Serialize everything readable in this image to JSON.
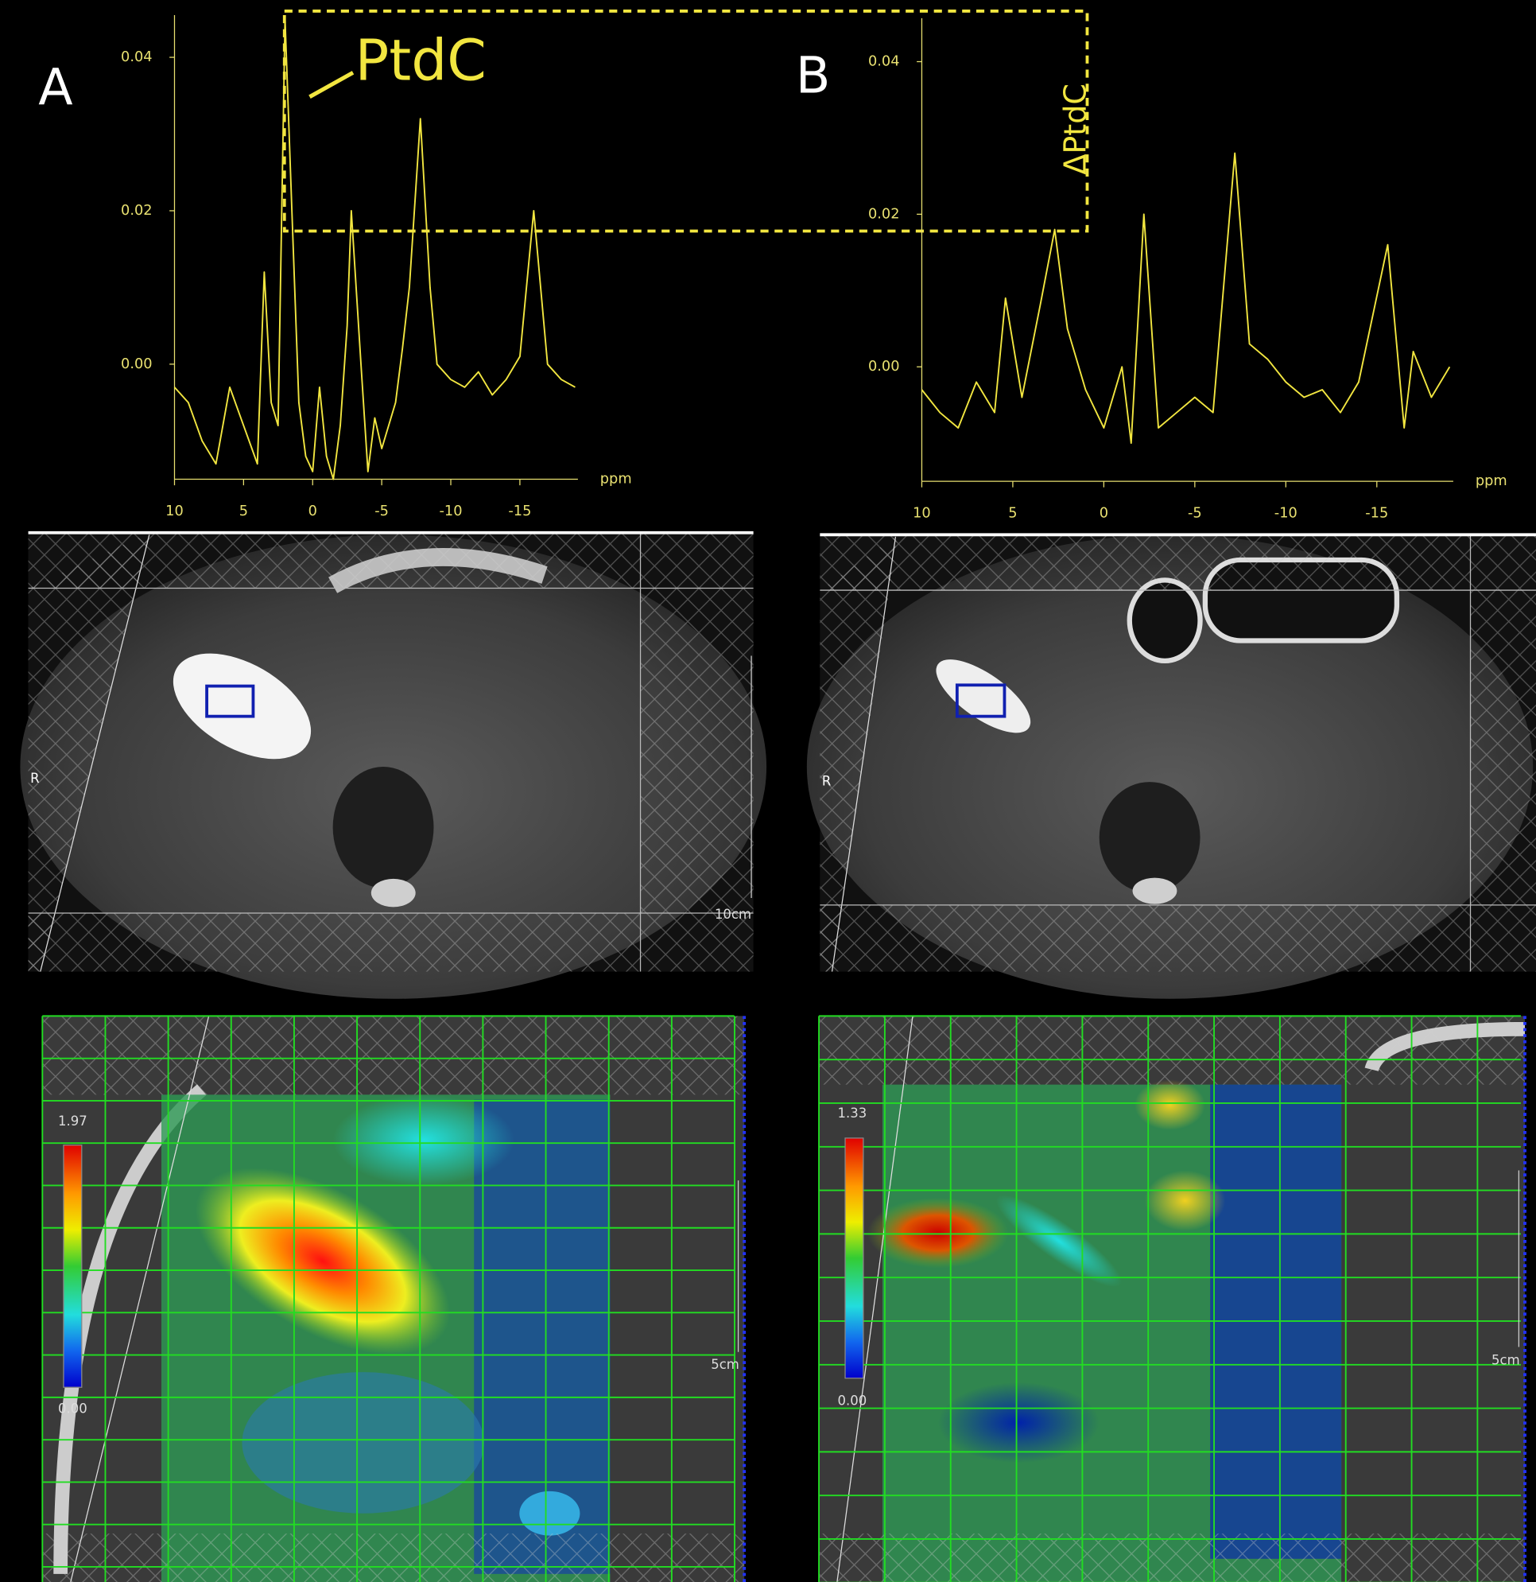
{
  "chart_data": [
    {
      "type": "line",
      "x_label": "ppm",
      "x": [
        10,
        9,
        8,
        7,
        6,
        5,
        4,
        3.5,
        3,
        2.5,
        2,
        1.5,
        1,
        0.5,
        0,
        -0.5,
        -1,
        -1.5,
        -2,
        -2.5,
        -2.8,
        -3.5,
        -4,
        -4.5,
        -5,
        -6,
        -6.5,
        -7,
        -7.8,
        -8.5,
        -9,
        -10,
        -11,
        -12,
        -13,
        -14,
        -15,
        -16,
        -17,
        -18,
        -19
      ],
      "series": [
        {
          "color": "#f2e640",
          "values": [
            -0.003,
            -0.005,
            -0.01,
            -0.013,
            -0.003,
            -0.008,
            -0.013,
            0.012,
            -0.005,
            -0.008,
            0.045,
            0.02,
            -0.005,
            -0.012,
            -0.014,
            -0.003,
            -0.012,
            -0.015,
            -0.008,
            0.005,
            0.02,
            0.0,
            -0.014,
            -0.007,
            -0.011,
            -0.005,
            0.002,
            0.01,
            0.032,
            0.01,
            0.0,
            -0.002,
            -0.003,
            -0.001,
            -0.004,
            -0.002,
            0.001,
            0.02,
            0.0,
            -0.002,
            -0.003
          ]
        }
      ],
      "xlim": [
        10,
        -19.2
      ],
      "ylim": [
        -0.015,
        0.0455
      ],
      "xticks": [
        10,
        5,
        0,
        -5,
        -10,
        -15
      ],
      "yticks": [
        {
          "value": 0,
          "label": "0.00"
        },
        0.02,
        0.04
      ]
    },
    {
      "type": "line",
      "x_label": "ppm",
      "x": [
        10,
        9,
        8,
        7,
        6,
        5.4,
        4.5,
        3.5,
        2.7,
        2,
        1,
        0,
        -1,
        -1.5,
        -2.2,
        -3,
        -4,
        -5,
        -6,
        -7.2,
        -8,
        -9,
        -10,
        -11,
        -12,
        -13,
        -14,
        -15.6,
        -16.5,
        -17,
        -18,
        -19
      ],
      "series": [
        {
          "color": "#f2e640",
          "values": [
            -0.003,
            -0.006,
            -0.008,
            -0.002,
            -0.006,
            0.009,
            -0.004,
            0.008,
            0.018,
            0.005,
            -0.003,
            -0.008,
            0.0,
            -0.01,
            0.02,
            -0.008,
            -0.006,
            -0.004,
            -0.006,
            0.028,
            0.003,
            0.001,
            -0.002,
            -0.004,
            -0.003,
            -0.006,
            -0.002,
            0.016,
            -0.008,
            0.002,
            -0.004,
            0.0
          ]
        }
      ],
      "xlim": [
        10,
        -19.2
      ],
      "ylim": [
        -0.015,
        0.0457
      ],
      "xticks": [
        10,
        5,
        0,
        -5,
        -10,
        -15
      ],
      "yticks": [
        {
          "value": 0,
          "label": "0.00"
        },
        0.02,
        0.04
      ]
    }
  ],
  "annotations": {
    "peak_label": "PtdC",
    "delta_label": "ΔPtdC"
  },
  "panels": [
    {
      "label": "A",
      "image_marker": "R",
      "scale_label": "10cm",
      "map_scale_label": "5cm",
      "colorbar_max": "1.97",
      "colorbar_min": "0.00"
    },
    {
      "label": "B",
      "image_marker": "R",
      "map_scale_label": "5cm",
      "colorbar_max": "1.33",
      "colorbar_min": "0.00"
    }
  ]
}
